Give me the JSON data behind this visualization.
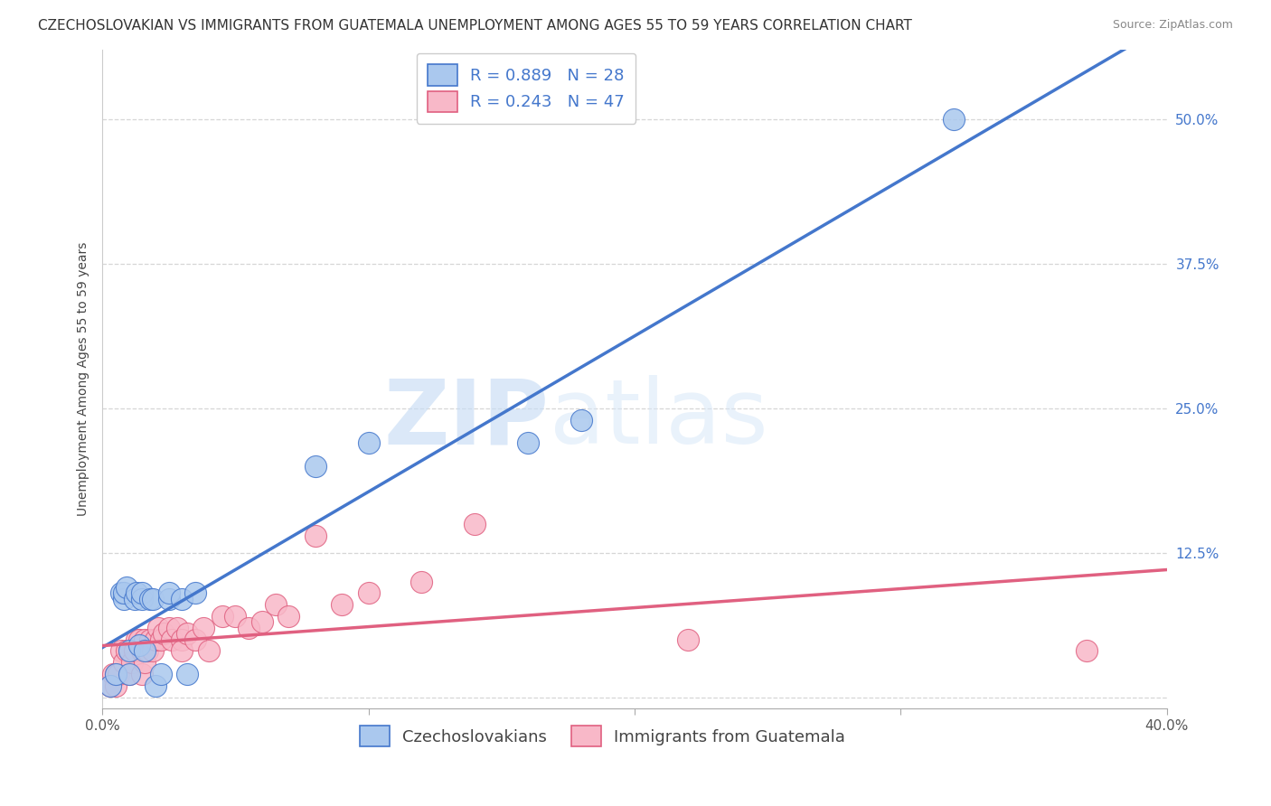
{
  "title": "CZECHOSLOVAKIAN VS IMMIGRANTS FROM GUATEMALA UNEMPLOYMENT AMONG AGES 55 TO 59 YEARS CORRELATION CHART",
  "source": "Source: ZipAtlas.com",
  "ylabel": "Unemployment Among Ages 55 to 59 years",
  "xlim": [
    0.0,
    0.4
  ],
  "ylim": [
    -0.01,
    0.56
  ],
  "xticks": [
    0.0,
    0.1,
    0.2,
    0.3,
    0.4
  ],
  "yticks": [
    0.0,
    0.125,
    0.25,
    0.375,
    0.5
  ],
  "yticklabels": [
    "",
    "12.5%",
    "25.0%",
    "37.5%",
    "50.0%"
  ],
  "series1_label": "Czechoslovakians",
  "series1_R": "0.889",
  "series1_N": "28",
  "series1_color": "#aac8ee",
  "series1_line_color": "#4477cc",
  "series2_label": "Immigrants from Guatemala",
  "series2_R": "0.243",
  "series2_N": "47",
  "series2_color": "#f8b8c8",
  "series2_line_color": "#e06080",
  "watermark_zip": "ZIP",
  "watermark_atlas": "atlas",
  "background_color": "#ffffff",
  "grid_color": "#cccccc",
  "blue_x": [
    0.003,
    0.005,
    0.007,
    0.008,
    0.008,
    0.009,
    0.01,
    0.01,
    0.012,
    0.013,
    0.014,
    0.015,
    0.015,
    0.016,
    0.018,
    0.019,
    0.02,
    0.022,
    0.025,
    0.025,
    0.03,
    0.032,
    0.035,
    0.08,
    0.1,
    0.16,
    0.18,
    0.32
  ],
  "blue_y": [
    0.01,
    0.02,
    0.09,
    0.085,
    0.09,
    0.095,
    0.02,
    0.04,
    0.085,
    0.09,
    0.045,
    0.085,
    0.09,
    0.04,
    0.085,
    0.085,
    0.01,
    0.02,
    0.085,
    0.09,
    0.085,
    0.02,
    0.09,
    0.2,
    0.22,
    0.22,
    0.24,
    0.5
  ],
  "pink_x": [
    0.003,
    0.004,
    0.005,
    0.005,
    0.006,
    0.007,
    0.008,
    0.009,
    0.01,
    0.01,
    0.011,
    0.012,
    0.013,
    0.014,
    0.015,
    0.015,
    0.016,
    0.016,
    0.017,
    0.018,
    0.019,
    0.02,
    0.021,
    0.022,
    0.023,
    0.025,
    0.026,
    0.028,
    0.03,
    0.03,
    0.032,
    0.035,
    0.038,
    0.04,
    0.045,
    0.05,
    0.055,
    0.06,
    0.065,
    0.07,
    0.08,
    0.09,
    0.1,
    0.12,
    0.14,
    0.22,
    0.37
  ],
  "pink_y": [
    0.01,
    0.02,
    0.01,
    0.02,
    0.02,
    0.04,
    0.03,
    0.04,
    0.02,
    0.04,
    0.03,
    0.04,
    0.05,
    0.05,
    0.02,
    0.04,
    0.03,
    0.05,
    0.04,
    0.05,
    0.04,
    0.05,
    0.06,
    0.05,
    0.055,
    0.06,
    0.05,
    0.06,
    0.05,
    0.04,
    0.055,
    0.05,
    0.06,
    0.04,
    0.07,
    0.07,
    0.06,
    0.065,
    0.08,
    0.07,
    0.14,
    0.08,
    0.09,
    0.1,
    0.15,
    0.05,
    0.04
  ],
  "title_fontsize": 11,
  "axis_fontsize": 10,
  "tick_fontsize": 11,
  "legend_fontsize": 13
}
